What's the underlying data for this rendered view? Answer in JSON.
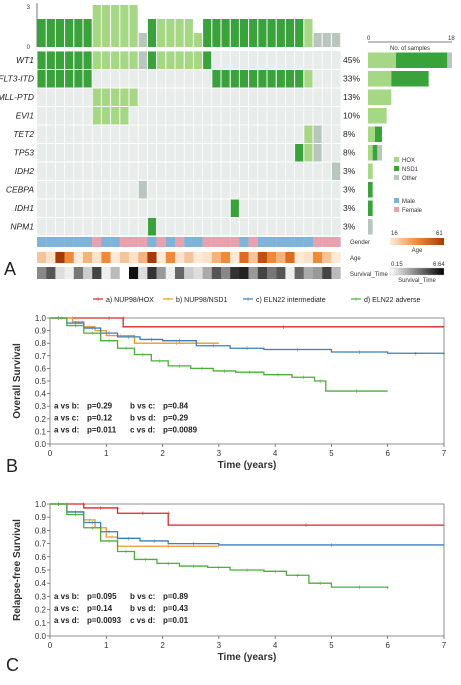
{
  "panelA": {
    "label": "A",
    "top_axis_ticks": [
      "3",
      "0"
    ],
    "right_axis_ticks": [
      "0",
      "18"
    ],
    "right_axis_label": "No. of samples",
    "genes": [
      "WT1",
      "FLT3-ITD",
      "MLL-PTD",
      "EVI1",
      "TET2",
      "TP53",
      "IDH2",
      "CEBPA",
      "IDH1",
      "NPM1"
    ],
    "percentages": [
      "45%",
      "33%",
      "13%",
      "10%",
      "8%",
      "8%",
      "3%",
      "3%",
      "3%",
      "3%"
    ],
    "right_bars": [
      {
        "hox": 6,
        "nsd1": 11,
        "other": 1
      },
      {
        "hox": 5,
        "nsd1": 8,
        "other": 0
      },
      {
        "hox": 5,
        "nsd1": 0,
        "other": 0
      },
      {
        "hox": 4,
        "nsd1": 0,
        "other": 0
      },
      {
        "hox": 1.5,
        "nsd1": 1.5,
        "other": 0
      },
      {
        "hox": 1,
        "nsd1": 1,
        "other": 1
      },
      {
        "hox": 1,
        "nsd1": 0,
        "other": 0
      },
      {
        "hox": 0,
        "nsd1": 1,
        "other": 0
      },
      {
        "hox": 0,
        "nsd1": 1,
        "other": 0
      },
      {
        "hox": 0,
        "nsd1": 0,
        "other": 1
      }
    ],
    "legend_group": [
      "HOX",
      "NSD1",
      "Other"
    ],
    "legend_gender": [
      "Male",
      "Female"
    ],
    "row_labels": [
      "Gender",
      "Age",
      "Survival_Time"
    ],
    "age_scale": {
      "title": "Age",
      "min": "16",
      "max": "61"
    },
    "survival_scale": {
      "title": "Survival_Time",
      "min": "0.15",
      "max": "6.64"
    },
    "colors": {
      "hox": "#a6d785",
      "nsd1": "#3aa23a",
      "other": "#b8c6be",
      "male": "#7fb3d8",
      "female": "#e8a2ae",
      "bg": "#e8eceb"
    }
  },
  "legend": {
    "entries": [
      "a) NUP98/HOX",
      "b) NUP98/NSD1",
      "c) ELN22 intermediate",
      "d) ELN22 adverse"
    ],
    "colors": [
      "#d62728",
      "#e89a2c",
      "#3b7fbf",
      "#4caf38"
    ]
  },
  "panelB": {
    "label": "B",
    "ylabel": "Overall Survival",
    "xlabel": "Time (years)",
    "comparisons": [
      {
        "pair": "a vs b:",
        "p": "p=0.29"
      },
      {
        "pair": "b vs c:",
        "p": "p=0.84"
      },
      {
        "pair": "a vs c:",
        "p": "p=0.12"
      },
      {
        "pair": "b vs d:",
        "p": "p=0.29"
      },
      {
        "pair": "a vs d:",
        "p": "p=0.011"
      },
      {
        "pair": "c vs d:",
        "p": "p=0.0089"
      }
    ]
  },
  "panelC": {
    "label": "C",
    "ylabel": "Relapse-free Survival",
    "xlabel": "Time (years)",
    "comparisons": [
      {
        "pair": "a vs b:",
        "p": "p=0.095"
      },
      {
        "pair": "b vs c:",
        "p": "p=0.89"
      },
      {
        "pair": "a vs c:",
        "p": "p=0.14"
      },
      {
        "pair": "b vs d:",
        "p": "p=0.43"
      },
      {
        "pair": "a vs d:",
        "p": "p=0.0093"
      },
      {
        "pair": "c vs d:",
        "p": "p=0.01"
      }
    ]
  },
  "chart_data": [
    {
      "type": "line",
      "panel": "B",
      "ylabel": "Overall Survival",
      "xlabel": "Time (years)",
      "xlim": [
        0,
        7
      ],
      "ylim": [
        0,
        1
      ],
      "xticks": [
        "0",
        "1",
        "2",
        "3",
        "4",
        "5",
        "6",
        "7"
      ],
      "yticks": [
        "0.0",
        "0.1",
        "0.2",
        "0.3",
        "0.4",
        "0.5",
        "0.6",
        "0.7",
        "0.8",
        "0.9",
        "1.0"
      ],
      "series": [
        {
          "name": "a) NUP98/HOX",
          "x": [
            0,
            0.8,
            1.3,
            1.3,
            7
          ],
          "y": [
            1.0,
            1.0,
            1.0,
            0.93,
            0.93
          ]
        },
        {
          "name": "b) NUP98/NSD1",
          "x": [
            0,
            0.4,
            0.6,
            0.8,
            1.0,
            1.5,
            3.0
          ],
          "y": [
            1.0,
            0.97,
            0.93,
            0.9,
            0.86,
            0.8,
            0.8
          ]
        },
        {
          "name": "c) ELN22 intermediate",
          "x": [
            0,
            0.3,
            0.6,
            0.9,
            1.2,
            1.6,
            2.0,
            2.6,
            3.2,
            3.8,
            5.0,
            6.0,
            7.0
          ],
          "y": [
            1.0,
            0.96,
            0.92,
            0.88,
            0.85,
            0.83,
            0.82,
            0.78,
            0.76,
            0.75,
            0.73,
            0.72,
            0.71
          ]
        },
        {
          "name": "d) ELN22 adverse",
          "x": [
            0,
            0.3,
            0.6,
            0.9,
            1.2,
            1.5,
            1.8,
            2.1,
            2.5,
            2.9,
            3.3,
            3.8,
            4.3,
            4.7,
            4.9,
            6.0
          ],
          "y": [
            1.0,
            0.94,
            0.88,
            0.82,
            0.76,
            0.71,
            0.66,
            0.62,
            0.6,
            0.58,
            0.57,
            0.55,
            0.53,
            0.5,
            0.42,
            0.42
          ]
        }
      ]
    },
    {
      "type": "line",
      "panel": "C",
      "ylabel": "Relapse-free Survival",
      "xlabel": "Time (years)",
      "xlim": [
        0,
        7
      ],
      "ylim": [
        0,
        1
      ],
      "xticks": [
        "0",
        "1",
        "2",
        "3",
        "4",
        "5",
        "6",
        "7"
      ],
      "yticks": [
        "0.0",
        "0.1",
        "0.2",
        "0.3",
        "0.4",
        "0.5",
        "0.6",
        "0.7",
        "0.8",
        "0.9",
        "1.0"
      ],
      "series": [
        {
          "name": "a) NUP98/HOX",
          "x": [
            0,
            0.6,
            0.6,
            1.2,
            1.2,
            2.1,
            2.1,
            7
          ],
          "y": [
            1.0,
            1.0,
            0.97,
            0.97,
            0.93,
            0.93,
            0.84,
            0.84
          ]
        },
        {
          "name": "b) NUP98/NSD1",
          "x": [
            0,
            0.3,
            0.6,
            0.8,
            1.0,
            1.2,
            3.0
          ],
          "y": [
            1.0,
            0.94,
            0.88,
            0.82,
            0.75,
            0.68,
            0.68
          ]
        },
        {
          "name": "c) ELN22 intermediate",
          "x": [
            0,
            0.3,
            0.6,
            0.9,
            1.2,
            1.6,
            2.1,
            3.0,
            7.0
          ],
          "y": [
            1.0,
            0.94,
            0.86,
            0.79,
            0.74,
            0.72,
            0.7,
            0.69,
            0.69
          ]
        },
        {
          "name": "d) ELN22 adverse",
          "x": [
            0,
            0.3,
            0.6,
            0.9,
            1.2,
            1.5,
            1.9,
            2.3,
            2.8,
            3.2,
            3.8,
            4.2,
            4.6,
            5.0,
            6.0
          ],
          "y": [
            1.0,
            0.92,
            0.82,
            0.72,
            0.64,
            0.58,
            0.55,
            0.53,
            0.52,
            0.5,
            0.49,
            0.46,
            0.4,
            0.37,
            0.36
          ]
        }
      ]
    }
  ]
}
